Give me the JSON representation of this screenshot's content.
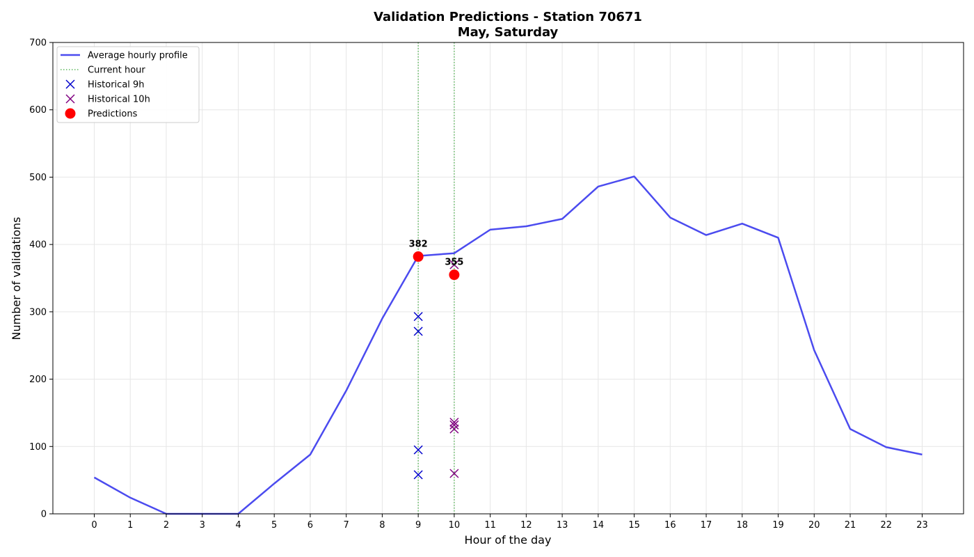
{
  "chart_data": {
    "type": "line",
    "title": "Validation Predictions - Station 70671",
    "subtitle": "May, Saturday",
    "xlabel": "Hour of the day",
    "ylabel": "Number of validations",
    "xlim": [
      -1.15,
      24.15
    ],
    "ylim": [
      0,
      700
    ],
    "x_ticks": [
      0,
      1,
      2,
      3,
      4,
      5,
      6,
      7,
      8,
      9,
      10,
      11,
      12,
      13,
      14,
      15,
      16,
      17,
      18,
      19,
      20,
      21,
      22,
      23
    ],
    "y_ticks": [
      0,
      100,
      200,
      300,
      400,
      500,
      600,
      700
    ],
    "grid": true,
    "legend_position": "top-left",
    "series": [
      {
        "name": "Average hourly profile",
        "kind": "line",
        "color": "#4b4bef",
        "x": [
          0,
          1,
          2,
          3,
          4,
          5,
          6,
          7,
          8,
          9,
          10,
          11,
          12,
          13,
          14,
          15,
          16,
          17,
          18,
          19,
          20,
          21,
          22,
          23
        ],
        "y": [
          54,
          24,
          0,
          0,
          0,
          45,
          88,
          183,
          290,
          383,
          387,
          422,
          427,
          438,
          486,
          501,
          440,
          414,
          431,
          410,
          243,
          126,
          99,
          88
        ]
      },
      {
        "name": "Current hour",
        "kind": "vline",
        "color": "#5fb85f",
        "x": [
          9,
          10
        ]
      },
      {
        "name": "Historical 9h",
        "kind": "x-marker",
        "color": "#0000cc",
        "x": [
          9,
          9,
          9,
          9
        ],
        "y": [
          293,
          271,
          95,
          58
        ]
      },
      {
        "name": "Historical 10h",
        "kind": "x-marker",
        "color": "#800080",
        "x": [
          10,
          10,
          10,
          10,
          10
        ],
        "y": [
          370,
          136,
          126,
          60,
          132
        ]
      },
      {
        "name": "Predictions",
        "kind": "point",
        "color": "#ff0000",
        "x": [
          9,
          10
        ],
        "y": [
          382,
          355
        ],
        "labels": [
          "382",
          "355"
        ]
      }
    ]
  }
}
